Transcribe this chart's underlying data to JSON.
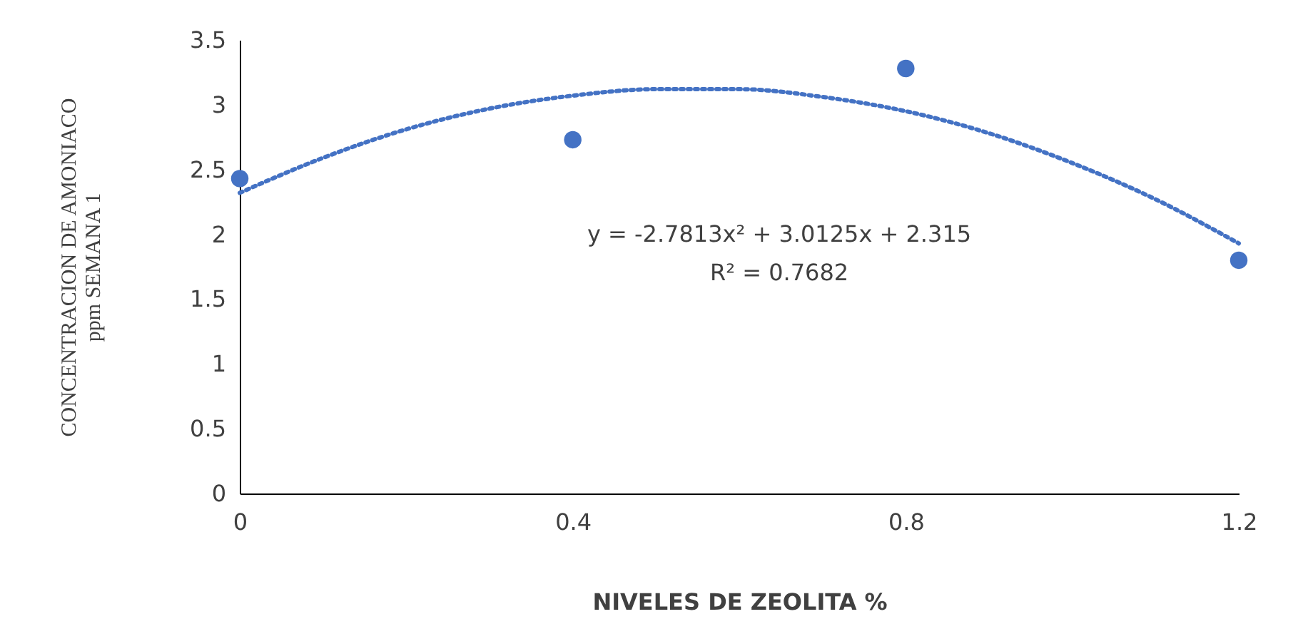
{
  "chart_data": {
    "type": "scatter",
    "xlabel": "NIVELES DE ZEOLITA %",
    "ylabel": "CONCENTRACION DE AMONIACO\nppm SEMANA 1",
    "x": [
      0,
      0.4,
      0.8,
      1.2
    ],
    "series": [
      {
        "type": "scatter",
        "color": "#4472c4",
        "marker": "circle",
        "values": [
          2.43,
          2.73,
          3.28,
          1.8
        ]
      },
      {
        "type": "line",
        "color": "#4472c4",
        "marker": "none",
        "line_style": "dotted",
        "x": [
          0,
          0.1,
          0.2,
          0.3,
          0.4,
          0.5,
          0.6,
          0.7,
          0.8,
          0.9,
          1.0,
          1.1,
          1.2
        ],
        "values": [
          2.32,
          2.59,
          2.81,
          2.97,
          3.07,
          3.12,
          3.12,
          3.06,
          2.95,
          2.78,
          2.55,
          2.27,
          1.93
        ]
      }
    ],
    "xlim": [
      0,
      1.2
    ],
    "xticks": [
      0,
      0.4,
      0.8,
      1.2
    ],
    "ylim": [
      0,
      3.5
    ],
    "yticks": [
      0,
      0.5,
      1,
      1.5,
      2,
      2.5,
      3,
      3.5
    ],
    "grid": false,
    "annotations": [
      "y = -2.7813x² + 3.0125x + 2.315",
      "R² = 0.7682"
    ]
  }
}
